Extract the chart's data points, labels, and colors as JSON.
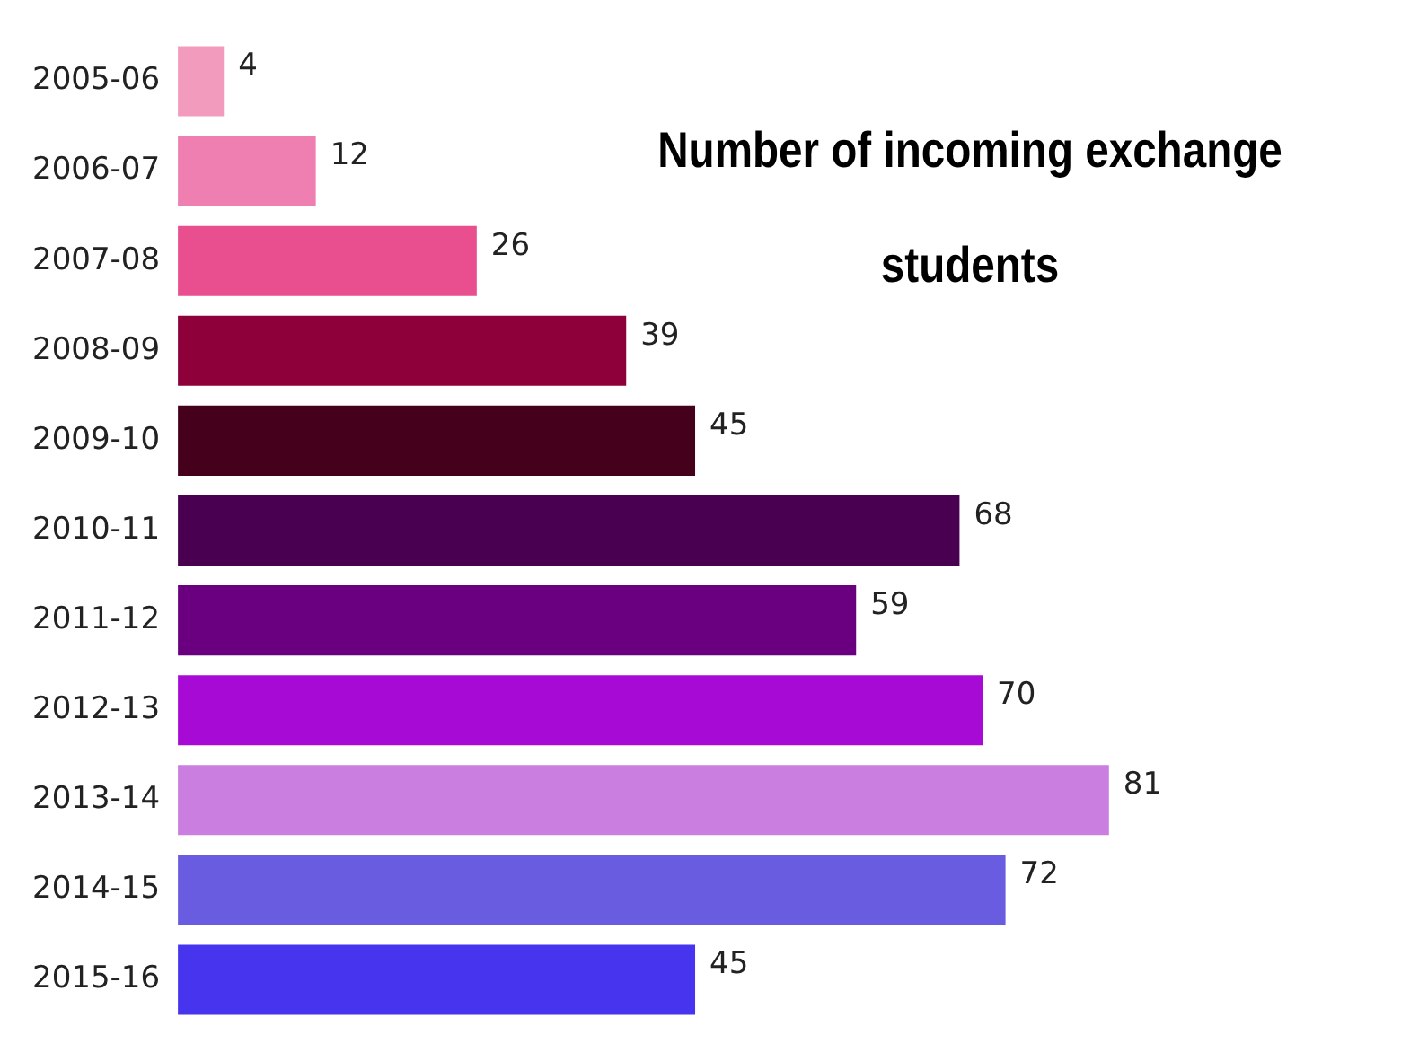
{
  "chart_data": {
    "type": "bar",
    "orientation": "horizontal",
    "title": "Number of incoming exchange students",
    "categories": [
      "2005-06",
      "2006-07",
      "2007-08",
      "2008-09",
      "2009-10",
      "2010-11",
      "2011-12",
      "2012-13",
      "2013-14",
      "2014-15",
      "2015-16"
    ],
    "values": [
      4,
      12,
      26,
      39,
      45,
      68,
      59,
      70,
      81,
      72,
      45
    ],
    "colors": [
      "#f29bbd",
      "#ef7fb0",
      "#e94f8f",
      "#8e0039",
      "#45001b",
      "#4a0050",
      "#6a0080",
      "#a80ad6",
      "#c97ee0",
      "#6a5ce0",
      "#4634ee"
    ],
    "data_labels": true,
    "grid": false,
    "legend": false
  }
}
